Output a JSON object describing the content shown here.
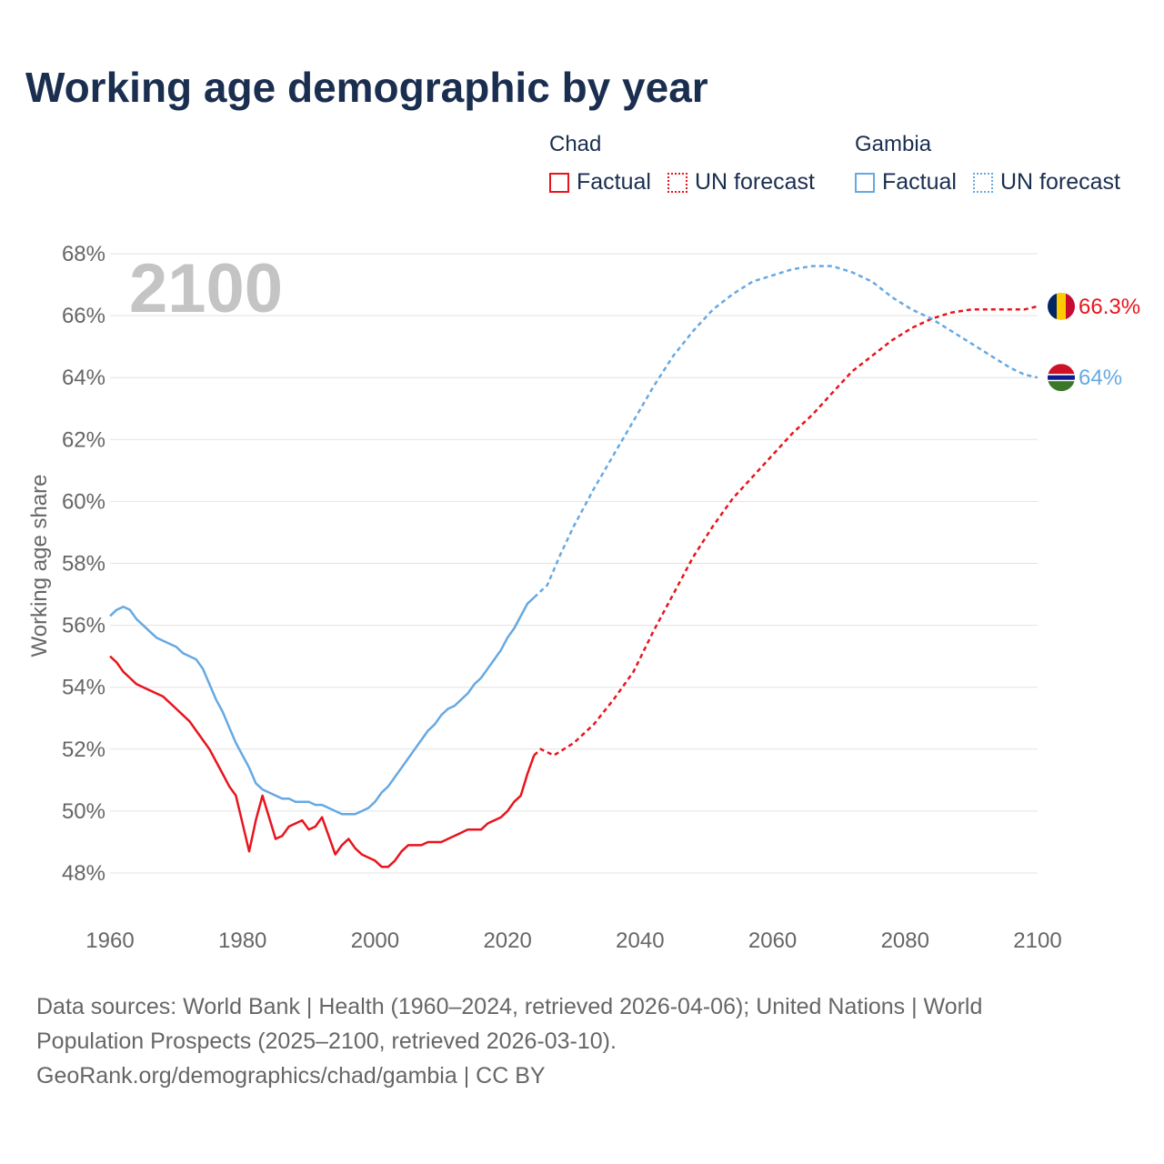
{
  "title": "Working age demographic by year",
  "year_watermark": "2100",
  "legend": {
    "groups": [
      {
        "name": "Chad",
        "factual_label": "Factual",
        "forecast_label": "UN forecast",
        "color": "#e8141c"
      },
      {
        "name": "Gambia",
        "factual_label": "Factual",
        "forecast_label": "UN forecast",
        "color": "#66a9e2"
      }
    ]
  },
  "footer": {
    "line1": "Data sources: World Bank | Health (1960–2024, retrieved 2026-04-06); United Nations | World",
    "line2": "Population Prospects (2025–2100, retrieved 2026-03-10).",
    "line3": "GeoRank.org/demographics/chad/gambia | CC BY"
  },
  "chart_data": {
    "type": "line",
    "title": "Working age demographic by year",
    "xlabel": "",
    "ylabel": "Working age share",
    "xlim": [
      1960,
      2100
    ],
    "ylim": [
      47.2,
      68
    ],
    "x_ticks": [
      1960,
      1980,
      2000,
      2020,
      2040,
      2060,
      2080,
      2100
    ],
    "x_tick_labels": [
      "1960",
      "1980",
      "2000",
      "2020",
      "2040",
      "2060",
      "2080",
      "2100"
    ],
    "y_ticks": [
      48,
      50,
      52,
      54,
      56,
      58,
      60,
      62,
      64,
      66,
      68
    ],
    "y_tick_labels": [
      "48%",
      "50%",
      "52%",
      "54%",
      "56%",
      "58%",
      "60%",
      "62%",
      "64%",
      "66%",
      "68%"
    ],
    "grid": true,
    "series": [
      {
        "name": "Chad",
        "color": "#e8141c",
        "end_label": "66.3%",
        "flag": "chad-flag",
        "factual": {
          "x": [
            1960,
            1961,
            1962,
            1963,
            1964,
            1965,
            1966,
            1967,
            1968,
            1969,
            1970,
            1971,
            1972,
            1973,
            1974,
            1975,
            1976,
            1977,
            1978,
            1979,
            1980,
            1981,
            1982,
            1983,
            1984,
            1985,
            1986,
            1987,
            1988,
            1989,
            1990,
            1991,
            1992,
            1993,
            1994,
            1995,
            1996,
            1997,
            1998,
            1999,
            2000,
            2001,
            2002,
            2003,
            2004,
            2005,
            2006,
            2007,
            2008,
            2009,
            2010,
            2011,
            2012,
            2013,
            2014,
            2015,
            2016,
            2017,
            2018,
            2019,
            2020,
            2021,
            2022,
            2023,
            2024
          ],
          "y": [
            55.0,
            54.8,
            54.5,
            54.3,
            54.1,
            54.0,
            53.9,
            53.8,
            53.7,
            53.5,
            53.3,
            53.1,
            52.9,
            52.6,
            52.3,
            52.0,
            51.6,
            51.2,
            50.8,
            50.5,
            49.6,
            48.7,
            49.7,
            50.5,
            49.8,
            49.1,
            49.2,
            49.5,
            49.6,
            49.7,
            49.4,
            49.5,
            49.8,
            49.2,
            48.6,
            48.9,
            49.1,
            48.8,
            48.6,
            48.5,
            48.4,
            48.2,
            48.2,
            48.4,
            48.7,
            48.9,
            48.9,
            48.9,
            49.0,
            49.0,
            49.0,
            49.1,
            49.2,
            49.3,
            49.4,
            49.4,
            49.4,
            49.6,
            49.7,
            49.8,
            50.0,
            50.3,
            50.5,
            51.2,
            51.8
          ]
        },
        "forecast": {
          "x": [
            2024,
            2025,
            2027,
            2030,
            2033,
            2036,
            2039,
            2042,
            2045,
            2048,
            2051,
            2054,
            2057,
            2060,
            2063,
            2066,
            2069,
            2072,
            2075,
            2078,
            2081,
            2084,
            2087,
            2090,
            2094,
            2098,
            2100
          ],
          "y": [
            51.8,
            52.0,
            51.8,
            52.2,
            52.8,
            53.6,
            54.5,
            55.8,
            57.0,
            58.2,
            59.2,
            60.1,
            60.8,
            61.5,
            62.2,
            62.8,
            63.5,
            64.2,
            64.7,
            65.2,
            65.6,
            65.9,
            66.1,
            66.2,
            66.2,
            66.2,
            66.3
          ]
        }
      },
      {
        "name": "Gambia",
        "color": "#66a9e2",
        "end_label": "64%",
        "flag": "gambia-flag",
        "factual": {
          "x": [
            1960,
            1961,
            1962,
            1963,
            1964,
            1965,
            1966,
            1967,
            1968,
            1969,
            1970,
            1971,
            1972,
            1973,
            1974,
            1975,
            1976,
            1977,
            1978,
            1979,
            1980,
            1981,
            1982,
            1983,
            1984,
            1985,
            1986,
            1987,
            1988,
            1989,
            1990,
            1991,
            1992,
            1993,
            1994,
            1995,
            1996,
            1997,
            1998,
            1999,
            2000,
            2001,
            2002,
            2003,
            2004,
            2005,
            2006,
            2007,
            2008,
            2009,
            2010,
            2011,
            2012,
            2013,
            2014,
            2015,
            2016,
            2017,
            2018,
            2019,
            2020,
            2021,
            2022,
            2023,
            2024
          ],
          "y": [
            56.3,
            56.5,
            56.6,
            56.5,
            56.2,
            56.0,
            55.8,
            55.6,
            55.5,
            55.4,
            55.3,
            55.1,
            55.0,
            54.9,
            54.6,
            54.1,
            53.6,
            53.2,
            52.7,
            52.2,
            51.8,
            51.4,
            50.9,
            50.7,
            50.6,
            50.5,
            50.4,
            50.4,
            50.3,
            50.3,
            50.3,
            50.2,
            50.2,
            50.1,
            50.0,
            49.9,
            49.9,
            49.9,
            50.0,
            50.1,
            50.3,
            50.6,
            50.8,
            51.1,
            51.4,
            51.7,
            52.0,
            52.3,
            52.6,
            52.8,
            53.1,
            53.3,
            53.4,
            53.6,
            53.8,
            54.1,
            54.3,
            54.6,
            54.9,
            55.2,
            55.6,
            55.9,
            56.3,
            56.7,
            56.9
          ]
        },
        "forecast": {
          "x": [
            2024,
            2026,
            2028,
            2030,
            2033,
            2036,
            2039,
            2042,
            2045,
            2048,
            2051,
            2054,
            2057,
            2060,
            2063,
            2066,
            2069,
            2072,
            2075,
            2078,
            2081,
            2084,
            2087,
            2090,
            2093,
            2096,
            2098,
            2100
          ],
          "y": [
            56.9,
            57.3,
            58.3,
            59.2,
            60.4,
            61.5,
            62.6,
            63.7,
            64.7,
            65.5,
            66.2,
            66.7,
            67.1,
            67.3,
            67.5,
            67.6,
            67.6,
            67.4,
            67.1,
            66.6,
            66.2,
            65.9,
            65.5,
            65.1,
            64.7,
            64.3,
            64.1,
            64.0
          ]
        }
      }
    ]
  }
}
